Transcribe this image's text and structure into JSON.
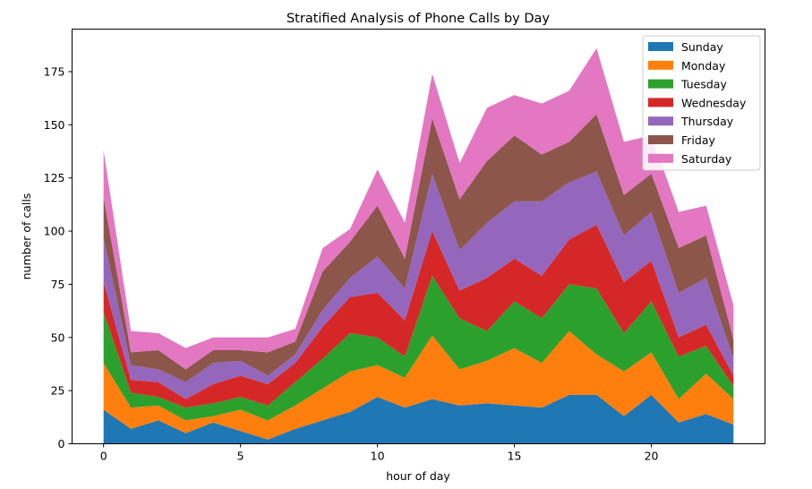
{
  "chart_data": {
    "type": "area",
    "stacked": true,
    "title": "Stratified Analysis of Phone Calls by Day",
    "xlabel": "hour of day",
    "ylabel": "number of calls",
    "xlim": [
      -1.15,
      24.15
    ],
    "ylim": [
      0,
      195
    ],
    "xticks": [
      0,
      5,
      10,
      15,
      20
    ],
    "yticks": [
      0,
      25,
      50,
      75,
      100,
      125,
      150,
      175
    ],
    "grid": false,
    "legend_position": "top-right",
    "x": [
      0,
      1,
      2,
      3,
      4,
      5,
      6,
      7,
      8,
      9,
      10,
      11,
      12,
      13,
      14,
      15,
      16,
      17,
      18,
      19,
      20,
      21,
      22,
      23
    ],
    "series": [
      {
        "name": "Sunday",
        "color": "#1f77b4",
        "values": [
          16,
          7,
          11,
          5,
          10,
          6,
          2,
          7,
          11,
          15,
          22,
          17,
          21,
          18,
          19,
          18,
          17,
          23,
          23,
          13,
          23,
          10,
          14,
          9
        ]
      },
      {
        "name": "Monday",
        "color": "#ff7f0e",
        "values": [
          22,
          10,
          7,
          6,
          3,
          10,
          9,
          11,
          15,
          19,
          15,
          14,
          30,
          17,
          20,
          27,
          21,
          30,
          19,
          21,
          20,
          11,
          19,
          12
        ]
      },
      {
        "name": "Tuesday",
        "color": "#2ca02c",
        "values": [
          24,
          7,
          4,
          6,
          6,
          6,
          7,
          11,
          14,
          18,
          13,
          10,
          28,
          24,
          14,
          22,
          21,
          22,
          31,
          18,
          24,
          20,
          13,
          6
        ]
      },
      {
        "name": "Wednesday",
        "color": "#d62728",
        "values": [
          14,
          6,
          7,
          4,
          9,
          10,
          10,
          9,
          15,
          17,
          21,
          17,
          21,
          13,
          25,
          20,
          20,
          21,
          30,
          24,
          19,
          9,
          10,
          5
        ]
      },
      {
        "name": "Thursday",
        "color": "#9467bd",
        "values": [
          21,
          7,
          6,
          8,
          10,
          7,
          4,
          4,
          8,
          9,
          17,
          15,
          27,
          19,
          26,
          27,
          35,
          27,
          25,
          22,
          23,
          21,
          22,
          8
        ]
      },
      {
        "name": "Friday",
        "color": "#8c564b",
        "values": [
          19,
          6,
          9,
          6,
          6,
          5,
          11,
          6,
          18,
          17,
          24,
          14,
          26,
          24,
          29,
          31,
          22,
          19,
          27,
          19,
          18,
          21,
          20,
          9
        ]
      },
      {
        "name": "Saturday",
        "color": "#e377c2",
        "values": [
          22,
          10,
          8,
          10,
          6,
          6,
          7,
          6,
          11,
          6,
          17,
          17,
          21,
          17,
          25,
          19,
          24,
          24,
          31,
          25,
          18,
          17,
          14,
          16
        ]
      }
    ]
  }
}
